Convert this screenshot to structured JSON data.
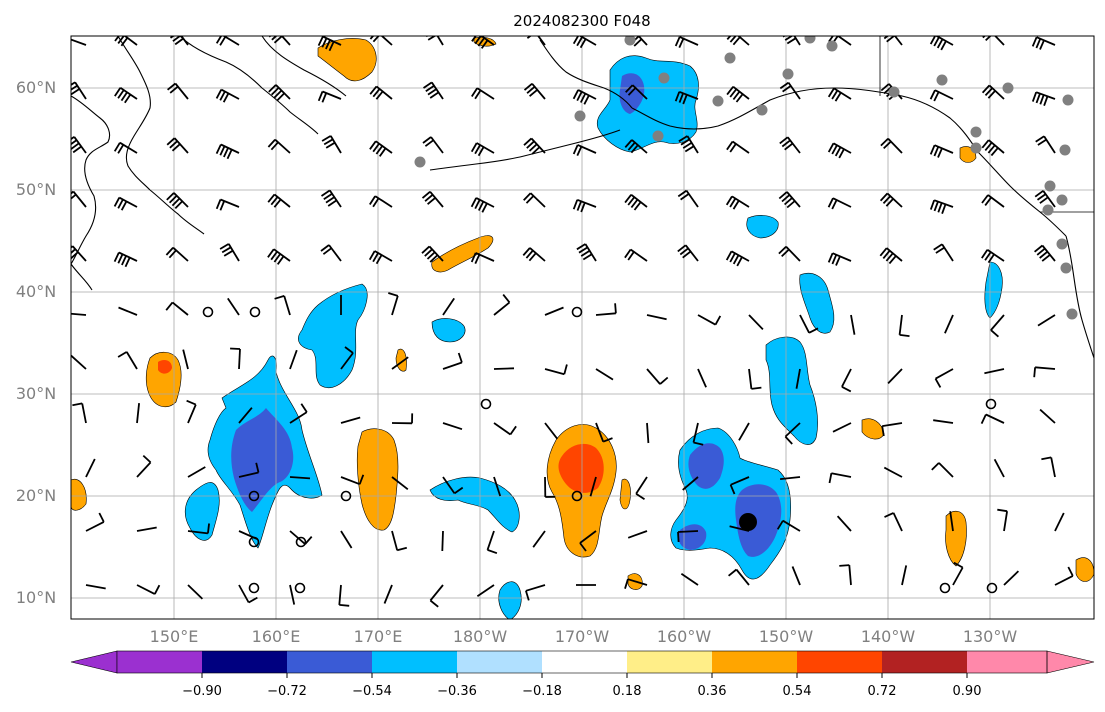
{
  "title": "2024082300 F048",
  "map": {
    "lat_labels": [
      "10°N",
      "20°N",
      "30°N",
      "40°N",
      "50°N",
      "60°N"
    ],
    "lon_labels": [
      "150°E",
      "160°E",
      "170°E",
      "180°W",
      "170°W",
      "160°W",
      "150°W",
      "140°W",
      "130°W"
    ]
  },
  "colorbar": {
    "colors": [
      "#9b30d0",
      "#000080",
      "#3a5bd6",
      "#00bfff",
      "#b0e0ff",
      "#ffffff",
      "#ffee88",
      "#ffa500",
      "#ff4500",
      "#b22222",
      "#ff88aa"
    ],
    "tick_labels": [
      "−0.90",
      "−0.72",
      "−0.54",
      "−0.36",
      "−0.18",
      "0.18",
      "0.36",
      "0.54",
      "0.72",
      "0.90"
    ]
  }
}
